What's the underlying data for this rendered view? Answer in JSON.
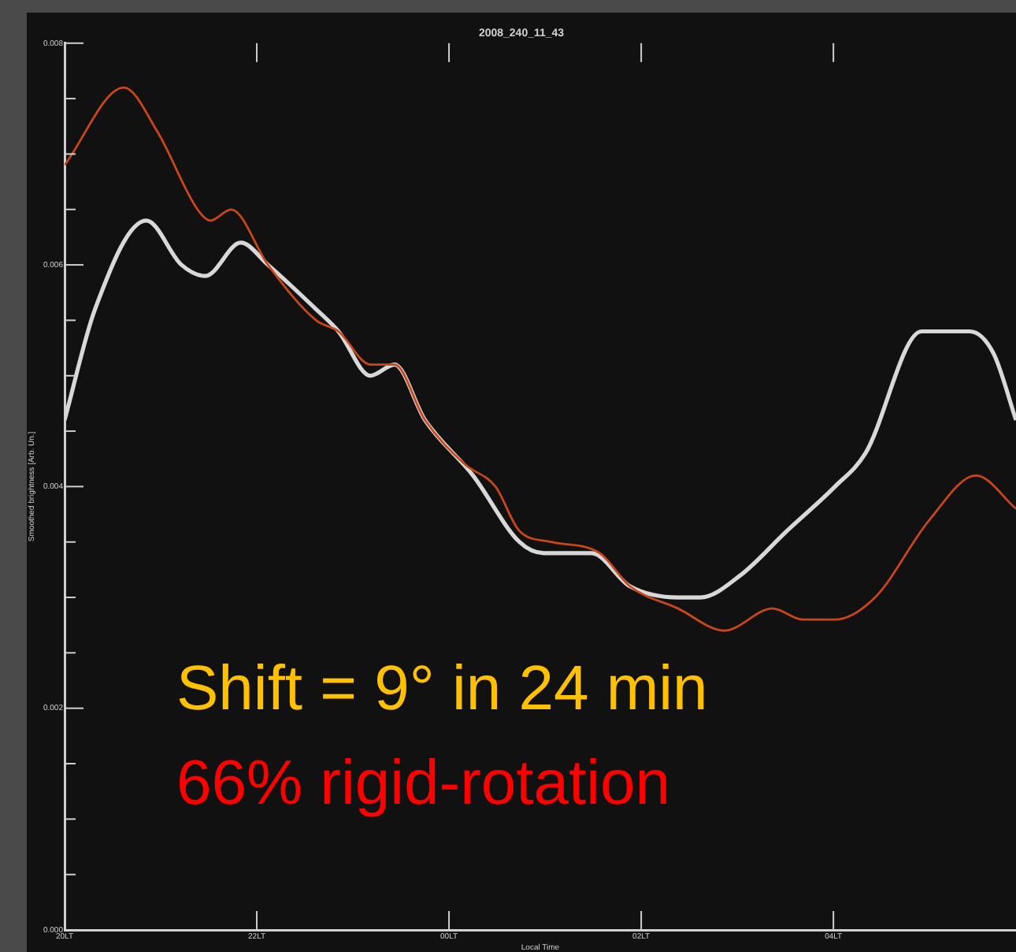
{
  "chart_data": {
    "type": "line",
    "title": "2008_240_11_43",
    "xlabel": "Local Time",
    "ylabel": "Smoothed brightness [Arb. Un.]",
    "xlim": [
      "2008-08-27T20:00",
      "2008-08-28T05:54"
    ],
    "xticks": [
      {
        "value": "2008-08-27T20:00",
        "label": "20LT"
      },
      {
        "value": "2008-08-27T22:00",
        "label": "22LT"
      },
      {
        "value": "2008-08-28T00:00",
        "label": "00LT"
      },
      {
        "value": "2008-08-28T02:00",
        "label": "02LT"
      },
      {
        "value": "2008-08-28T04:00",
        "label": "04LT"
      }
    ],
    "ylim": [
      0,
      0.008
    ],
    "yticks": [
      {
        "value": 0,
        "label": "0.000"
      },
      {
        "value": 0.0005,
        "label": null
      },
      {
        "value": 0.001,
        "label": null
      },
      {
        "value": 0.0015,
        "label": null
      },
      {
        "value": 0.002,
        "label": "0.002"
      },
      {
        "value": 0.0025,
        "label": null
      },
      {
        "value": 0.003,
        "label": null
      },
      {
        "value": 0.0035,
        "label": null
      },
      {
        "value": 0.004,
        "label": "0.004"
      },
      {
        "value": 0.0045,
        "label": null
      },
      {
        "value": 0.005,
        "label": null
      },
      {
        "value": 0.0055,
        "label": null
      },
      {
        "value": 0.006,
        "label": "0.006"
      },
      {
        "value": 0.0065,
        "label": null
      },
      {
        "value": 0.007,
        "label": null
      },
      {
        "value": 0.0075,
        "label": null
      },
      {
        "value": 0.008,
        "label": "0.008"
      }
    ],
    "grid": false,
    "legend": false,
    "marker": "none",
    "line_style": "solid",
    "series": [
      {
        "color": "#c8461a",
        "x": [
          "2008-08-27T20:00",
          "2008-08-27T20:37",
          "2008-08-27T20:58",
          "2008-08-27T21:23",
          "2008-08-27T21:31",
          "2008-08-27T21:44",
          "2008-08-27T22:07",
          "2008-08-27T22:37",
          "2008-08-27T22:51",
          "2008-08-27T23:11",
          "2008-08-27T23:26",
          "2008-08-27T23:45",
          "2008-08-28T00:10",
          "2008-08-28T00:29",
          "2008-08-28T00:44",
          "2008-08-28T01:04",
          "2008-08-28T01:34",
          "2008-08-28T01:53",
          "2008-08-28T02:23",
          "2008-08-28T02:52",
          "2008-08-28T03:22",
          "2008-08-28T03:41",
          "2008-08-28T04:01",
          "2008-08-28T04:26",
          "2008-08-28T05:00",
          "2008-08-28T05:29",
          "2008-08-28T05:54"
        ],
        "values": [
          0.0069,
          0.0076,
          0.0072,
          0.0065,
          0.0064,
          0.0065,
          0.006,
          0.0055,
          0.0054,
          0.0051,
          0.0051,
          0.0046,
          0.0042,
          0.004,
          0.0036,
          0.0035,
          0.0034,
          0.0031,
          0.0029,
          0.0027,
          0.0029,
          0.0028,
          0.0028,
          0.003,
          0.0037,
          0.0041,
          0.0038
        ]
      },
      {
        "color": "#d8d8d8",
        "x": [
          "2008-08-27T20:00",
          "2008-08-27T20:19",
          "2008-08-27T20:51",
          "2008-08-27T21:13",
          "2008-08-27T21:28",
          "2008-08-27T21:50",
          "2008-08-27T22:07",
          "2008-08-27T22:37",
          "2008-08-27T22:51",
          "2008-08-27T23:11",
          "2008-08-27T23:26",
          "2008-08-27T23:45",
          "2008-08-28T00:15",
          "2008-08-28T00:44",
          "2008-08-28T00:59",
          "2008-08-28T01:29",
          "2008-08-28T01:53",
          "2008-08-28T02:23",
          "2008-08-28T02:37",
          "2008-08-28T03:02",
          "2008-08-28T03:31",
          "2008-08-28T04:01",
          "2008-08-28T04:20",
          "2008-08-28T04:55",
          "2008-08-28T05:25",
          "2008-08-28T05:40",
          "2008-08-28T05:54"
        ],
        "values": [
          0.0046,
          0.0056,
          0.0064,
          0.006,
          0.0059,
          0.0062,
          0.006,
          0.0056,
          0.0054,
          0.005,
          0.0051,
          0.0046,
          0.0041,
          0.0035,
          0.0034,
          0.0034,
          0.0031,
          0.003,
          0.003,
          0.0032,
          0.0036,
          0.004,
          0.0043,
          0.0054,
          0.0054,
          0.0052,
          0.0046
        ]
      }
    ],
    "annotations": [
      "Shift = 9° in 24 min",
      "66% rigid-rotation"
    ]
  }
}
